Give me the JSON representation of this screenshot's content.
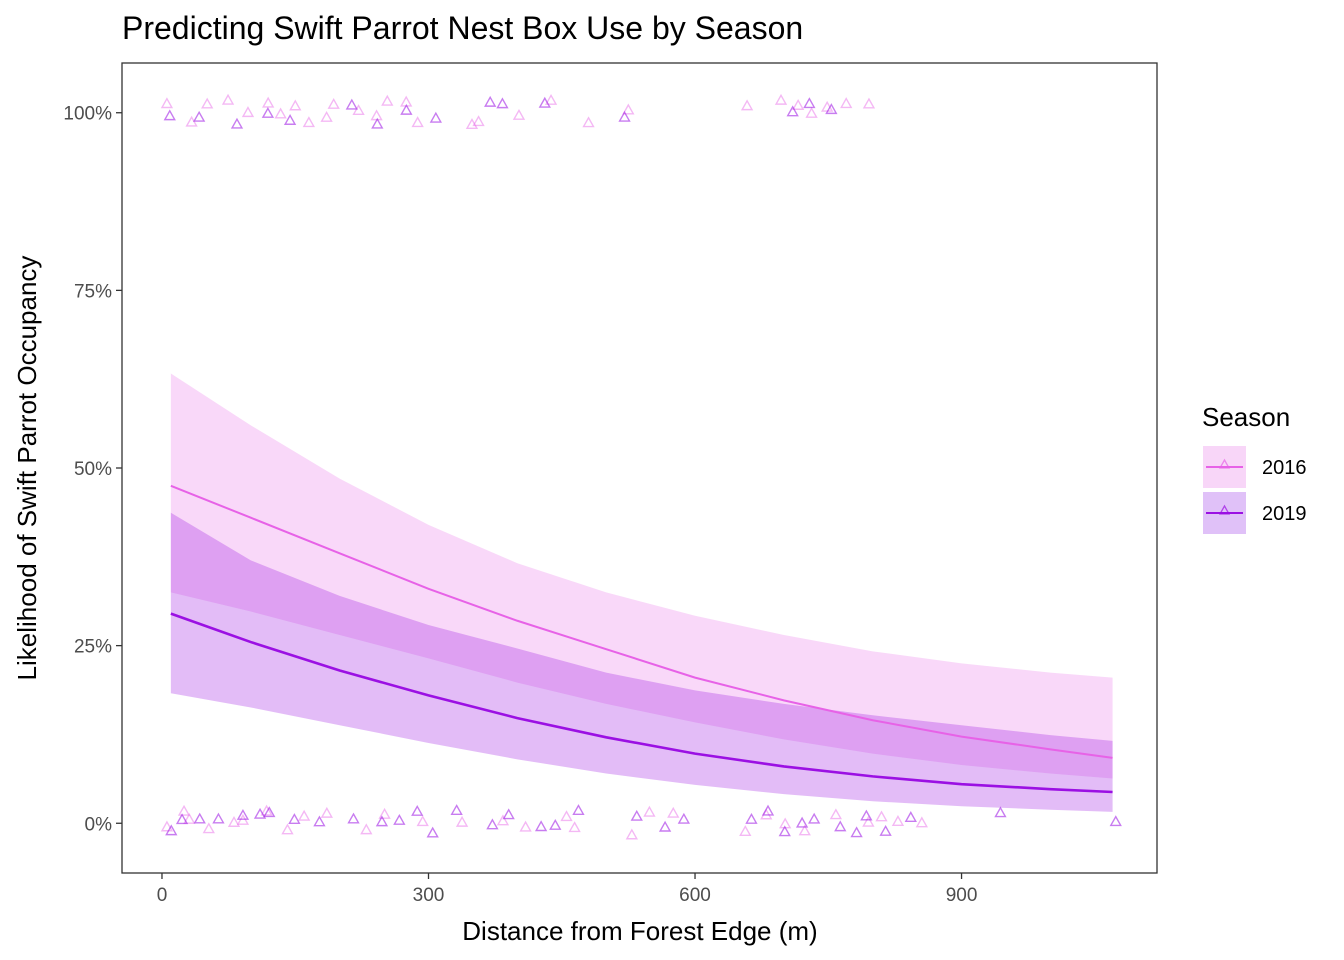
{
  "chart_data": {
    "type": "line",
    "title": "Predicting Swift Parrot Nest Box Use by Season",
    "xlabel": "Distance from Forest Edge (m)",
    "ylabel": "Likelihood of Swift Parrot Occupancy",
    "xlim": [
      -45,
      1120
    ],
    "ylim": [
      -0.07,
      1.07
    ],
    "x_ticks": [
      0,
      300,
      600,
      900
    ],
    "x_tick_labels": [
      "0",
      "300",
      "600",
      "900"
    ],
    "y_ticks": [
      0,
      0.25,
      0.5,
      0.75,
      1.0
    ],
    "y_tick_labels": [
      "0%",
      "25%",
      "50%",
      "75%",
      "100%"
    ],
    "grid": false,
    "legend": {
      "title": "Season",
      "position": "right"
    },
    "series": [
      {
        "name": "2016",
        "color": "#E762E7",
        "ribbon_color": "#F8D6F8",
        "marker": "triangle-open",
        "x": [
          10,
          100,
          200,
          300,
          400,
          500,
          600,
          700,
          800,
          900,
          1000,
          1070
        ],
        "fit": [
          0.475,
          0.43,
          0.38,
          0.33,
          0.285,
          0.245,
          0.205,
          0.173,
          0.145,
          0.122,
          0.104,
          0.092
        ],
        "lower": [
          0.325,
          0.298,
          0.265,
          0.232,
          0.198,
          0.168,
          0.142,
          0.118,
          0.098,
          0.082,
          0.07,
          0.063
        ],
        "upper": [
          0.633,
          0.56,
          0.485,
          0.42,
          0.366,
          0.325,
          0.292,
          0.265,
          0.242,
          0.225,
          0.212,
          0.205
        ],
        "points_x_at_1": [
          10,
          30,
          50,
          75,
          100,
          115,
          130,
          150,
          165,
          185,
          200,
          220,
          240,
          255,
          270,
          290,
          350,
          360,
          395,
          435,
          475,
          520,
          665,
          695,
          710,
          735,
          745,
          775,
          790
        ],
        "points_x_at_0": [
          8,
          20,
          35,
          55,
          75,
          95,
          115,
          140,
          160,
          180,
          225,
          250,
          290,
          340,
          380,
          410,
          450,
          465,
          525,
          545,
          580,
          650,
          675,
          700,
          725,
          760,
          790,
          810,
          835,
          860
        ]
      },
      {
        "name": "2019",
        "color": "#9B10E3",
        "ribbon_color": "#E0C1F8",
        "marker": "triangle-open",
        "x": [
          10,
          100,
          200,
          300,
          400,
          500,
          600,
          700,
          800,
          900,
          1000,
          1070
        ],
        "fit": [
          0.295,
          0.255,
          0.215,
          0.18,
          0.148,
          0.121,
          0.098,
          0.08,
          0.066,
          0.055,
          0.048,
          0.044
        ],
        "lower": [
          0.183,
          0.163,
          0.138,
          0.113,
          0.09,
          0.07,
          0.054,
          0.041,
          0.031,
          0.024,
          0.019,
          0.016
        ],
        "upper": [
          0.437,
          0.37,
          0.32,
          0.279,
          0.246,
          0.212,
          0.187,
          0.168,
          0.152,
          0.138,
          0.124,
          0.116
        ],
        "points_x_at_1": [
          12,
          35,
          90,
          120,
          140,
          215,
          245,
          280,
          310,
          370,
          390,
          435,
          520,
          705,
          725,
          760
        ],
        "points_x_at_0": [
          5,
          25,
          45,
          60,
          85,
          105,
          125,
          145,
          175,
          210,
          245,
          265,
          285,
          305,
          335,
          370,
          395,
          420,
          440,
          470,
          540,
          560,
          590,
          660,
          680,
          700,
          720,
          740,
          760,
          775,
          795,
          815,
          840,
          945,
          1075
        ]
      }
    ]
  }
}
